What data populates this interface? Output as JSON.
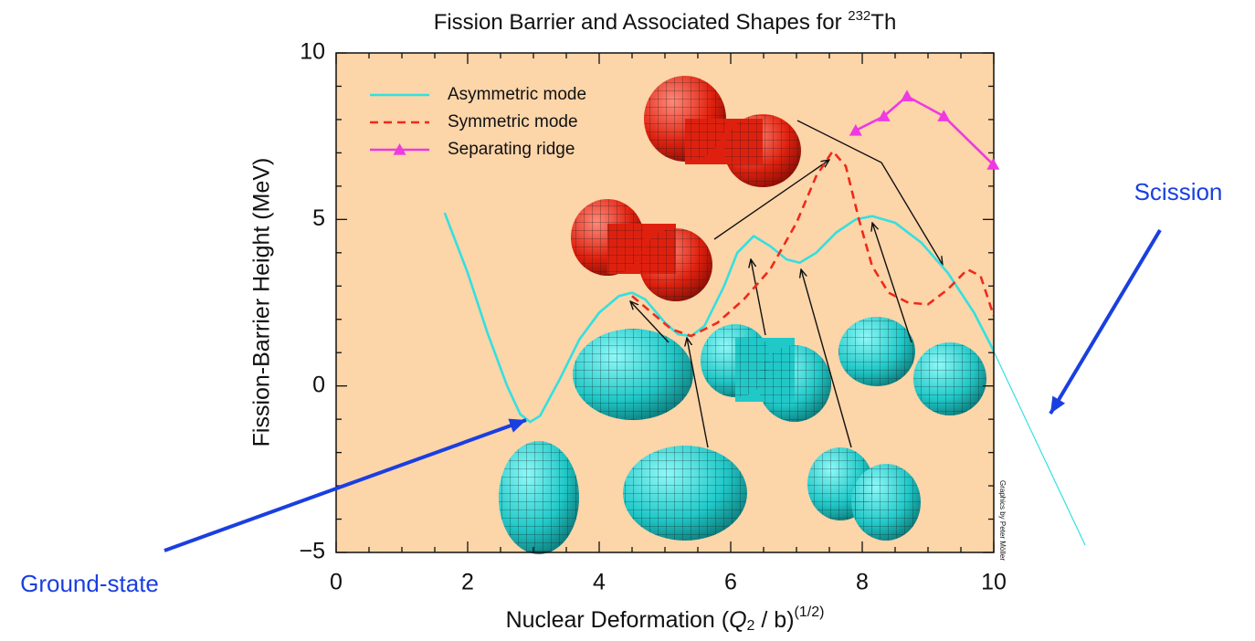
{
  "chart_data": {
    "type": "line",
    "title": {
      "text": "Fission Barrier and Associated Shapes for ",
      "superscript": "232",
      "element": "Th"
    },
    "x_label": {
      "text": "Nuclear Deformation (",
      "symbol": "Q",
      "subscript": "2",
      "unit": " / b)",
      "exponent": "(1/2)"
    },
    "y_label": "Fission-Barrier Height (MeV)",
    "xlim": [
      0,
      10
    ],
    "ylim": [
      -5,
      10
    ],
    "xticks": [
      0,
      2,
      4,
      6,
      8,
      10
    ],
    "yticks": [
      {
        "value": -5,
        "label": "−5"
      },
      0,
      5,
      10
    ],
    "x_minor_ticks": [
      0.5,
      1,
      1.5,
      2.5,
      3,
      3.5,
      4.5,
      5,
      5.5,
      6.5,
      7,
      7.5,
      8.5,
      9,
      9.5
    ],
    "y_minor_ticks": [
      -4,
      -3,
      -2,
      -1,
      1,
      2,
      3,
      4,
      6,
      7,
      8,
      9
    ],
    "background": "#fcd5a9",
    "legend_position": "upper left",
    "series": [
      {
        "name": "Asymmetric mode",
        "color": "#33e0e0",
        "linestyle": "solid",
        "marker": null,
        "x": [
          1.65,
          2.0,
          2.3,
          2.6,
          2.8,
          2.95,
          3.1,
          3.4,
          3.7,
          4.0,
          4.3,
          4.5,
          4.7,
          5.0,
          5.2,
          5.4,
          5.6,
          5.9,
          6.1,
          6.35,
          6.6,
          6.85,
          7.05,
          7.3,
          7.6,
          7.9,
          8.15,
          8.5,
          8.9,
          9.3,
          9.7,
          10.0
        ],
        "values": [
          5.2,
          3.4,
          1.6,
          0.0,
          -0.85,
          -1.08,
          -0.9,
          0.2,
          1.4,
          2.2,
          2.7,
          2.8,
          2.6,
          1.9,
          1.55,
          1.5,
          1.8,
          3.0,
          4.0,
          4.5,
          4.2,
          3.8,
          3.7,
          4.0,
          4.6,
          5.0,
          5.1,
          4.9,
          4.3,
          3.4,
          2.2,
          1.05
        ]
      },
      {
        "name": "Symmetric mode",
        "color": "#ee2a1a",
        "linestyle": "dashed",
        "marker": null,
        "x": [
          4.5,
          4.8,
          5.1,
          5.4,
          5.8,
          6.2,
          6.6,
          7.0,
          7.3,
          7.55,
          7.75,
          7.95,
          8.15,
          8.4,
          8.7,
          9.0,
          9.3,
          9.6,
          9.8,
          10.0
        ],
        "values": [
          2.7,
          2.2,
          1.7,
          1.5,
          1.9,
          2.6,
          3.5,
          4.9,
          6.3,
          7.05,
          6.6,
          5.0,
          3.6,
          2.8,
          2.5,
          2.45,
          2.9,
          3.5,
          3.3,
          2.1
        ]
      },
      {
        "name": "Separating ridge",
        "color": "#ee3ae0",
        "linestyle": "solid",
        "marker": "triangle",
        "x": [
          7.9,
          8.33,
          8.68,
          9.24,
          9.99
        ],
        "values": [
          7.67,
          8.1,
          8.7,
          8.1,
          6.65
        ]
      }
    ],
    "annotations": [
      "Ground-state",
      "Scission"
    ],
    "credit": "Graphics by Peter Möller"
  }
}
